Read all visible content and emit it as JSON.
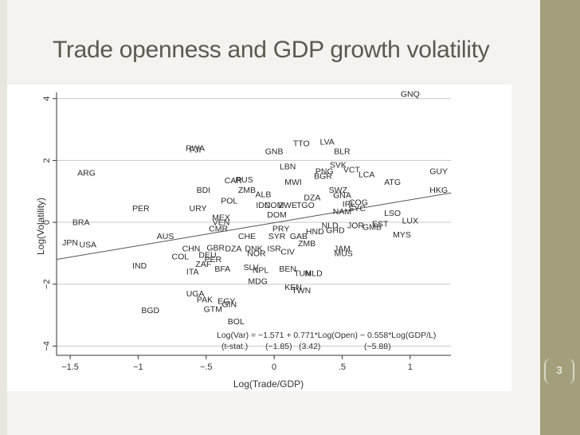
{
  "slide": {
    "title": "Trade openness and GDP growth volatility",
    "page_number": "3",
    "colors": {
      "background": "#f4f3ef",
      "side_band": "#a39f7d",
      "title": "#5a5a52"
    }
  },
  "chart_data": {
    "type": "scatter",
    "xlabel": "Log(Trade/GDP)",
    "ylabel": "Log(Volatility)",
    "xlim": [
      -1.6,
      1.3
    ],
    "ylim": [
      -4.3,
      4.2
    ],
    "x_ticks": [
      -1.5,
      -1,
      -0.5,
      0,
      0.5,
      1
    ],
    "x_tick_labels": [
      "−1.5",
      "−1",
      "−.5",
      "0",
      ".5",
      "1"
    ],
    "y_ticks": [
      -4,
      -2,
      0,
      2,
      4
    ],
    "y_tick_labels": [
      "−4",
      "−2",
      "0",
      "2",
      "4"
    ],
    "grid": "horizontal",
    "fit_line": {
      "y_at_xmin": -1.2,
      "y_at_xmax": 0.95
    },
    "points": [
      {
        "label": "GNQ",
        "x": 1.0,
        "y": 4.15
      },
      {
        "label": "TTO",
        "x": 0.2,
        "y": 2.55
      },
      {
        "label": "LVA",
        "x": 0.39,
        "y": 2.6
      },
      {
        "label": "FJI",
        "x": -0.58,
        "y": 2.35
      },
      {
        "label": "RWA",
        "x": -0.58,
        "y": 2.4
      },
      {
        "label": "GNB",
        "x": 0.0,
        "y": 2.3
      },
      {
        "label": "BLR",
        "x": 0.5,
        "y": 2.3
      },
      {
        "label": "LBN",
        "x": 0.1,
        "y": 1.8
      },
      {
        "label": "SVK",
        "x": 0.47,
        "y": 1.85
      },
      {
        "label": "ARG",
        "x": -1.38,
        "y": 1.6
      },
      {
        "label": "PNG",
        "x": 0.37,
        "y": 1.65
      },
      {
        "label": "VCT",
        "x": 0.57,
        "y": 1.7
      },
      {
        "label": "LCA",
        "x": 0.68,
        "y": 1.55
      },
      {
        "label": "GUY",
        "x": 1.21,
        "y": 1.65
      },
      {
        "label": "BGR",
        "x": 0.36,
        "y": 1.5
      },
      {
        "label": "CAR",
        "x": -0.3,
        "y": 1.35
      },
      {
        "label": "RUS",
        "x": -0.22,
        "y": 1.38
      },
      {
        "label": "MWI",
        "x": 0.14,
        "y": 1.3
      },
      {
        "label": "ATG",
        "x": 0.87,
        "y": 1.3
      },
      {
        "label": "BDI",
        "x": -0.52,
        "y": 1.05
      },
      {
        "label": "ZMB",
        "x": -0.2,
        "y": 1.05
      },
      {
        "label": "ALB",
        "x": -0.08,
        "y": 0.9
      },
      {
        "label": "SWZ",
        "x": 0.47,
        "y": 1.05
      },
      {
        "label": "HKG",
        "x": 1.21,
        "y": 1.05
      },
      {
        "label": "GNA",
        "x": 0.5,
        "y": 0.88
      },
      {
        "label": "POL",
        "x": -0.33,
        "y": 0.7
      },
      {
        "label": "DZA",
        "x": 0.28,
        "y": 0.8
      },
      {
        "label": "TGO",
        "x": 0.23,
        "y": 0.55
      },
      {
        "label": "PER",
        "x": -0.98,
        "y": 0.45
      },
      {
        "label": "URY",
        "x": -0.56,
        "y": 0.45
      },
      {
        "label": "IDN",
        "x": -0.08,
        "y": 0.55
      },
      {
        "label": "COM",
        "x": 0.0,
        "y": 0.55
      },
      {
        "label": "ZWE",
        "x": 0.1,
        "y": 0.55
      },
      {
        "label": "IRL",
        "x": 0.55,
        "y": 0.6
      },
      {
        "label": "COG",
        "x": 0.62,
        "y": 0.65
      },
      {
        "label": "LSO",
        "x": 0.87,
        "y": 0.3
      },
      {
        "label": "DOM",
        "x": 0.02,
        "y": 0.25
      },
      {
        "label": "NAM",
        "x": 0.5,
        "y": 0.35
      },
      {
        "label": "SYC",
        "x": 0.61,
        "y": 0.45
      },
      {
        "label": "MEX",
        "x": -0.39,
        "y": 0.15
      },
      {
        "label": "BRA",
        "x": -1.42,
        "y": 0.0
      },
      {
        "label": "VEN",
        "x": -0.39,
        "y": 0.0
      },
      {
        "label": "LUX",
        "x": 1.0,
        "y": 0.05
      },
      {
        "label": "EST",
        "x": 0.78,
        "y": -0.05
      },
      {
        "label": "NLD",
        "x": 0.41,
        "y": -0.1
      },
      {
        "label": "JOR",
        "x": 0.6,
        "y": -0.1
      },
      {
        "label": "GMB",
        "x": 0.72,
        "y": -0.15
      },
      {
        "label": "CMR",
        "x": -0.41,
        "y": -0.2
      },
      {
        "label": "PRY",
        "x": 0.05,
        "y": -0.2
      },
      {
        "label": "HND",
        "x": 0.3,
        "y": -0.3
      },
      {
        "label": "GHD",
        "x": 0.45,
        "y": -0.25
      },
      {
        "label": "MYS",
        "x": 0.94,
        "y": -0.4
      },
      {
        "label": "AUS",
        "x": -0.8,
        "y": -0.45
      },
      {
        "label": "CHE",
        "x": -0.2,
        "y": -0.45
      },
      {
        "label": "SYR",
        "x": 0.02,
        "y": -0.45
      },
      {
        "label": "GAB",
        "x": 0.18,
        "y": -0.45
      },
      {
        "label": "JPN",
        "x": -1.5,
        "y": -0.65
      },
      {
        "label": "USA",
        "x": -1.37,
        "y": -0.72
      },
      {
        "label": "ZMB",
        "x": 0.24,
        "y": -0.68
      },
      {
        "label": "CHN",
        "x": -0.61,
        "y": -0.85
      },
      {
        "label": "GBR",
        "x": -0.43,
        "y": -0.82
      },
      {
        "label": "DZA",
        "x": -0.3,
        "y": -0.85
      },
      {
        "label": "DNK",
        "x": -0.15,
        "y": -0.85
      },
      {
        "label": "ISR",
        "x": 0.0,
        "y": -0.85
      },
      {
        "label": "JAM",
        "x": 0.5,
        "y": -0.85
      },
      {
        "label": "COL",
        "x": -0.69,
        "y": -1.1
      },
      {
        "label": "DEU",
        "x": -0.49,
        "y": -1.05
      },
      {
        "label": "NOR",
        "x": -0.13,
        "y": -1.0
      },
      {
        "label": "CIV",
        "x": 0.1,
        "y": -0.95
      },
      {
        "label": "MUS",
        "x": 0.51,
        "y": -1.0
      },
      {
        "label": "PER",
        "x": -0.45,
        "y": -1.2
      },
      {
        "label": "ZAF",
        "x": -0.52,
        "y": -1.35
      },
      {
        "label": "IND",
        "x": -0.99,
        "y": -1.4
      },
      {
        "label": "BFA",
        "x": -0.38,
        "y": -1.5
      },
      {
        "label": "SLV",
        "x": -0.17,
        "y": -1.45
      },
      {
        "label": "NPL",
        "x": -0.1,
        "y": -1.55
      },
      {
        "label": "BEN",
        "x": 0.1,
        "y": -1.5
      },
      {
        "label": "ITA",
        "x": -0.6,
        "y": -1.6
      },
      {
        "label": "TUN",
        "x": 0.21,
        "y": -1.65
      },
      {
        "label": "MLD",
        "x": 0.29,
        "y": -1.65
      },
      {
        "label": "MDG",
        "x": -0.12,
        "y": -1.9
      },
      {
        "label": "KEN",
        "x": 0.14,
        "y": -2.1
      },
      {
        "label": "TWN",
        "x": 0.2,
        "y": -2.2
      },
      {
        "label": "UGA",
        "x": -0.58,
        "y": -2.3
      },
      {
        "label": "PAK",
        "x": -0.51,
        "y": -2.5
      },
      {
        "label": "EGY",
        "x": -0.35,
        "y": -2.55
      },
      {
        "label": "GIN",
        "x": -0.33,
        "y": -2.65
      },
      {
        "label": "GTM",
        "x": -0.45,
        "y": -2.8
      },
      {
        "label": "BGD",
        "x": -0.91,
        "y": -2.85
      },
      {
        "label": "BOL",
        "x": -0.28,
        "y": -3.2
      }
    ],
    "annotation": {
      "equation": "Log(Var) = −1.571 + 0.771*Log(Open) − 0.558*Log(GDP/L)",
      "tstat_label": "(t-stat.)",
      "tstat_values": [
        "(−1.85)",
        "(3.42)",
        "(−5.88)"
      ]
    }
  }
}
